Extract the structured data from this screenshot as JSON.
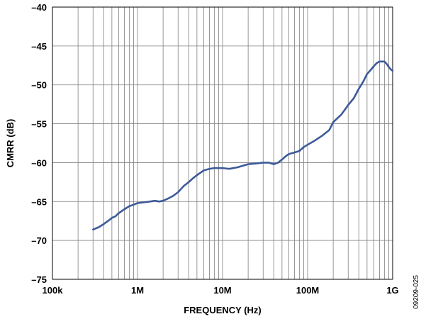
{
  "chart_data": {
    "type": "line",
    "title": "",
    "xlabel": "FREQUENCY (Hz)",
    "ylabel": "CMRR (dB)",
    "x_scale": "log",
    "xlim": [
      100000,
      1000000000
    ],
    "ylim": [
      -75,
      -40
    ],
    "x_ticks": [
      {
        "value": 100000,
        "label": "100k"
      },
      {
        "value": 1000000,
        "label": "1M"
      },
      {
        "value": 10000000,
        "label": "10M"
      },
      {
        "value": 100000000,
        "label": "100M"
      },
      {
        "value": 1000000000,
        "label": "1G"
      }
    ],
    "y_ticks": [
      {
        "value": -40,
        "label": "–40"
      },
      {
        "value": -45,
        "label": "–45"
      },
      {
        "value": -50,
        "label": "–50"
      },
      {
        "value": -55,
        "label": "–55"
      },
      {
        "value": -60,
        "label": "–60"
      },
      {
        "value": -65,
        "label": "–65"
      },
      {
        "value": -70,
        "label": "–70"
      },
      {
        "value": -75,
        "label": "–75"
      }
    ],
    "grid": true,
    "line_color": "#3d5a99",
    "series": [
      {
        "x": [
          300000,
          350000,
          400000,
          450000,
          500000,
          550000,
          600000,
          700000,
          800000,
          900000,
          1000000,
          1200000,
          1400000,
          1600000,
          1800000,
          2000000,
          2300000,
          2600000,
          3000000,
          3500000,
          4000000,
          4500000,
          5000000,
          5500000,
          6000000,
          7000000,
          8000000,
          9000000,
          10000000,
          12000000,
          15000000,
          20000000,
          25000000,
          30000000,
          35000000,
          40000000,
          45000000,
          50000000,
          55000000,
          60000000,
          70000000,
          80000000,
          90000000,
          100000000,
          120000000,
          150000000,
          180000000,
          200000000,
          250000000,
          300000000,
          350000000,
          400000000,
          450000000,
          500000000,
          550000000,
          600000000,
          650000000,
          700000000,
          750000000,
          800000000,
          850000000,
          900000000,
          950000000,
          1000000000
        ],
        "y": [
          -68.6,
          -68.3,
          -67.9,
          -67.5,
          -67.1,
          -66.9,
          -66.5,
          -66.0,
          -65.6,
          -65.4,
          -65.2,
          -65.1,
          -65.0,
          -64.9,
          -65.0,
          -64.9,
          -64.6,
          -64.3,
          -63.8,
          -63.0,
          -62.5,
          -62.0,
          -61.6,
          -61.3,
          -61.0,
          -60.8,
          -60.7,
          -60.7,
          -60.7,
          -60.8,
          -60.6,
          -60.2,
          -60.1,
          -60.0,
          -60.0,
          -60.2,
          -60.0,
          -59.6,
          -59.2,
          -58.9,
          -58.7,
          -58.5,
          -58.0,
          -57.7,
          -57.2,
          -56.5,
          -55.8,
          -54.8,
          -53.8,
          -52.6,
          -51.7,
          -50.5,
          -49.6,
          -48.6,
          -48.1,
          -47.6,
          -47.2,
          -47.0,
          -47.0,
          -47.0,
          -47.3,
          -47.7,
          -48.0,
          -48.2
        ]
      }
    ]
  },
  "figure_id": "09209-025"
}
